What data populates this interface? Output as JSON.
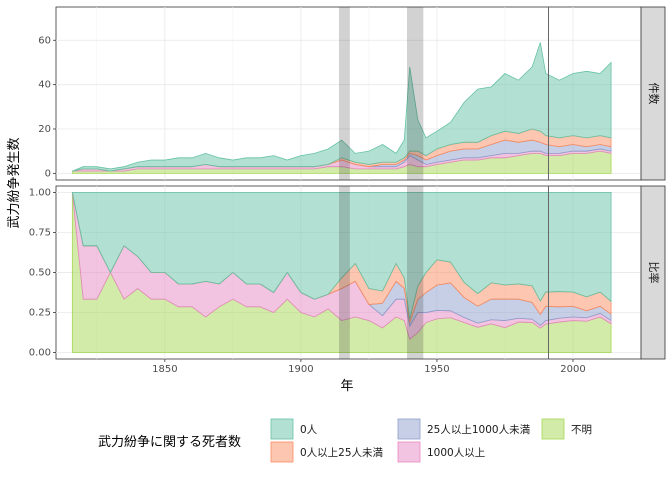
{
  "chart_data": {
    "type": "area",
    "xlabel": "年",
    "ylabel": "武力紛争発生数",
    "xlim": [
      1810,
      2025
    ],
    "x_ticks": [
      "1850",
      "1900",
      "1950",
      "2000"
    ],
    "x_tick_values": [
      1850,
      1900,
      1950,
      2000
    ],
    "facets": [
      {
        "strip": "件数",
        "ylim": [
          -3,
          75
        ],
        "y_ticks": [
          "0",
          "20",
          "40",
          "60"
        ],
        "y_tick_values": [
          0,
          20,
          40,
          60
        ]
      },
      {
        "strip": "比率",
        "ylim": [
          -0.04,
          1.04
        ],
        "y_ticks": [
          "0.00",
          "0.25",
          "0.50",
          "0.75",
          "1.00"
        ],
        "y_tick_values": [
          0,
          0.25,
          0.5,
          0.75,
          1.0
        ]
      }
    ],
    "shaded_periods": [
      [
        1914,
        1918
      ],
      [
        1939,
        1945
      ]
    ],
    "reference_line_x": 1991,
    "legend": {
      "title": "武力紛争に関する死者数",
      "entries": [
        "0人",
        "0人以上25人未満",
        "25人以上1000人未満",
        "1000人以上",
        "不明"
      ]
    },
    "colors": [
      "#66c2a5",
      "#fc8d62",
      "#8da0cb",
      "#e78ac3",
      "#a6d854"
    ],
    "x": [
      1816,
      1820,
      1825,
      1830,
      1835,
      1840,
      1845,
      1850,
      1855,
      1860,
      1865,
      1870,
      1875,
      1880,
      1885,
      1890,
      1895,
      1900,
      1905,
      1910,
      1915,
      1920,
      1925,
      1930,
      1935,
      1938,
      1940,
      1943,
      1946,
      1950,
      1955,
      1960,
      1965,
      1970,
      1975,
      1980,
      1985,
      1988,
      1990,
      1995,
      2000,
      2005,
      2010,
      2014
    ],
    "series": [
      {
        "name": "0人",
        "values": [
          0,
          1,
          1,
          1,
          1,
          2,
          3,
          3,
          4,
          4,
          5,
          4,
          3,
          4,
          4,
          5,
          3,
          5,
          6,
          7,
          8,
          4,
          6,
          8,
          4,
          8,
          38,
          14,
          8,
          8,
          10,
          18,
          24,
          22,
          26,
          24,
          28,
          40,
          28,
          26,
          28,
          30,
          28,
          34
        ]
      },
      {
        "name": "0人以上25人未満",
        "values": [
          0,
          0,
          0,
          0,
          0,
          0,
          0,
          0,
          0,
          0,
          0,
          0,
          0,
          0,
          0,
          0,
          0,
          0,
          0,
          0,
          1,
          1,
          1,
          1,
          1,
          1,
          1,
          2,
          2,
          3,
          3,
          3,
          3,
          4,
          4,
          4,
          5,
          5,
          4,
          4,
          4,
          4,
          4,
          4
        ]
      },
      {
        "name": "25人以上1000人未満",
        "values": [
          0,
          0,
          0,
          0,
          0,
          0,
          0,
          0,
          0,
          0,
          0,
          0,
          0,
          0,
          0,
          0,
          0,
          0,
          0,
          0,
          0,
          0,
          0,
          1,
          1,
          1,
          1,
          2,
          2,
          3,
          4,
          4,
          4,
          5,
          6,
          5,
          5,
          4,
          4,
          3,
          3,
          2,
          2,
          2
        ]
      },
      {
        "name": "1000人以上",
        "values": [
          0,
          1,
          1,
          0,
          1,
          1,
          1,
          1,
          1,
          1,
          2,
          1,
          1,
          1,
          1,
          1,
          1,
          1,
          1,
          1,
          3,
          2,
          1,
          1,
          1,
          2,
          4,
          3,
          1,
          1,
          1,
          1,
          1,
          1,
          2,
          1,
          1,
          1,
          1,
          1,
          1,
          1,
          1,
          1
        ]
      },
      {
        "name": "不明",
        "values": [
          1,
          1,
          1,
          1,
          1,
          2,
          2,
          2,
          2,
          2,
          2,
          2,
          2,
          2,
          2,
          2,
          2,
          2,
          2,
          3,
          3,
          2,
          2,
          2,
          2,
          3,
          4,
          3,
          3,
          4,
          5,
          6,
          6,
          7,
          7,
          8,
          9,
          9,
          8,
          8,
          9,
          9,
          10,
          9
        ]
      }
    ]
  }
}
